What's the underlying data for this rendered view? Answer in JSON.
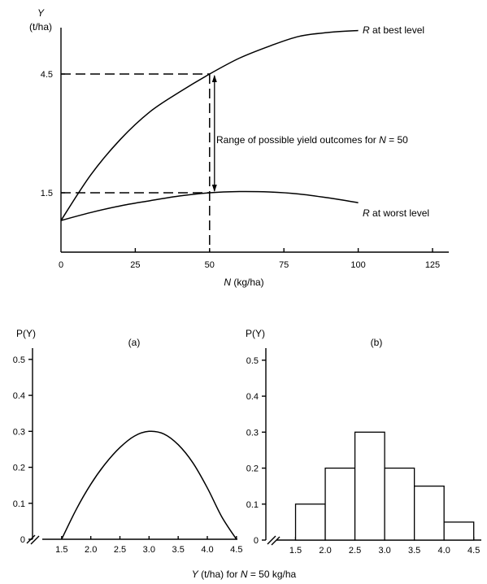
{
  "chart_data": [
    {
      "type": "line",
      "ylabel_var": "Y",
      "ylabel_unit": "(t/ha)",
      "xlabel_var": "N",
      "xlabel_unit": "(kg/ha)",
      "xlim": [
        0,
        125
      ],
      "ylim": [
        0,
        6.0
      ],
      "xticks": [
        "0",
        "25",
        "50",
        "75",
        "100",
        "125"
      ],
      "yticks": [
        "1.5",
        "4.5"
      ],
      "series": [
        {
          "name_var": "R",
          "name_text": "at best level",
          "x": [
            0,
            10,
            20,
            30,
            40,
            50,
            60,
            70,
            80,
            90,
            100
          ],
          "y": [
            0.8,
            1.95,
            2.85,
            3.55,
            4.05,
            4.5,
            4.9,
            5.2,
            5.45,
            5.55,
            5.6
          ]
        },
        {
          "name_var": "R",
          "name_text": "at worst level",
          "x": [
            0,
            10,
            20,
            30,
            40,
            50,
            60,
            70,
            80,
            90,
            100
          ],
          "y": [
            0.8,
            1.0,
            1.17,
            1.3,
            1.42,
            1.5,
            1.53,
            1.52,
            1.47,
            1.37,
            1.25
          ]
        }
      ],
      "annotation": {
        "text": "Range of possible yield outcomes for ",
        "var": "N",
        "suffix": " = 50",
        "x": 50,
        "y_low": 1.5,
        "y_high": 4.5
      }
    },
    {
      "type": "line",
      "panel_label": "(a)",
      "ylabel": "P(Y)",
      "yticks": [
        "0",
        "0.1",
        "0.2",
        "0.3",
        "0.4",
        "0.5"
      ],
      "xticks": [
        "1.5",
        "2.0",
        "2.5",
        "3.0",
        "3.5",
        "4.0",
        "4.5"
      ],
      "xlim": [
        1.0,
        4.6
      ],
      "ylim": [
        0,
        0.52
      ],
      "x": [
        1.5,
        1.75,
        2.0,
        2.25,
        2.5,
        2.75,
        3.0,
        3.25,
        3.5,
        3.75,
        4.0,
        4.25,
        4.5
      ],
      "y": [
        0.0,
        0.083,
        0.153,
        0.21,
        0.255,
        0.287,
        0.3,
        0.293,
        0.263,
        0.213,
        0.143,
        0.062,
        0.0
      ]
    },
    {
      "type": "bar",
      "panel_label": "(b)",
      "ylabel": "P(Y)",
      "yticks": [
        "0",
        "0.1",
        "0.2",
        "0.3",
        "0.4",
        "0.5"
      ],
      "xticks": [
        "1.5",
        "2.0",
        "2.5",
        "3.0",
        "3.5",
        "4.0",
        "4.5"
      ],
      "xlim": [
        1.0,
        4.6
      ],
      "ylim": [
        0,
        0.52
      ],
      "bin_edges": [
        1.5,
        2.0,
        2.5,
        3.0,
        3.5,
        4.0,
        4.5
      ],
      "values": [
        0.1,
        0.2,
        0.3,
        0.2,
        0.15,
        0.05
      ]
    }
  ],
  "shared_xlabel": {
    "var": "Y",
    "unit": "(t/ha) for ",
    "var2": "N",
    "suffix": " = 50 kg/ha"
  }
}
